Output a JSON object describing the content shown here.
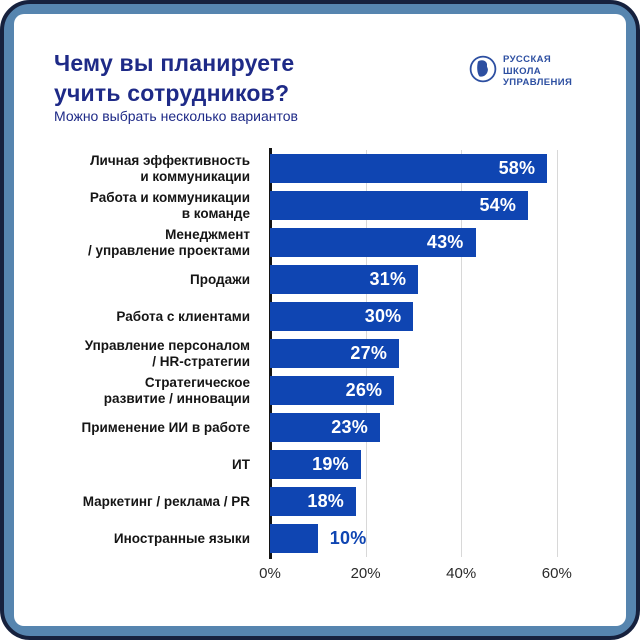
{
  "page": {
    "frame_color": "#5685af",
    "frame_border_color": "#16213d",
    "card_color": "#ffffff"
  },
  "header": {
    "title": "Чему вы планируете\nучить сотрудников?",
    "subtitle": "Можно выбрать несколько вариантов",
    "title_color": "#1e2a87"
  },
  "logo": {
    "icon": "face-profile-in-circle-icon",
    "text": "РУССКАЯ\nШКОЛА\nУПРАВЛЕНИЯ",
    "color": "#2d4fa1"
  },
  "chart_data": {
    "type": "bar",
    "orientation": "horizontal",
    "title": "Чему вы планируете учить сотрудников?",
    "subtitle": "Можно выбрать несколько вариантов",
    "categories": [
      "Личная эффективность\nи коммуникации",
      "Работа и коммуникации\nв команде",
      "Менеджмент\n/ управление проектами",
      "Продажи",
      "Работа с клиентами",
      "Управление персоналом\n/ HR-стратегии",
      "Стратегическое\nразвитие / инновации",
      "Применение ИИ в работе",
      "ИТ",
      "Маркетинг / реклама / PR",
      "Иностранные языки"
    ],
    "values": [
      58,
      54,
      43,
      31,
      30,
      27,
      26,
      23,
      19,
      18,
      10
    ],
    "value_labels": [
      "58%",
      "54%",
      "43%",
      "31%",
      "30%",
      "27%",
      "26%",
      "23%",
      "19%",
      "18%",
      "10%"
    ],
    "xlabel": "",
    "ylabel": "",
    "xlim": [
      0,
      69
    ],
    "xticks": [
      {
        "value": 0,
        "label": "0%"
      },
      {
        "value": 20,
        "label": "20%"
      },
      {
        "value": 40,
        "label": "40%"
      },
      {
        "value": 60,
        "label": "60%"
      }
    ],
    "grid": true,
    "legend": false,
    "bar_color": "#0f45b2",
    "value_label_color_inside": "#ffffff",
    "value_label_color_outside": "#0f45b2"
  }
}
